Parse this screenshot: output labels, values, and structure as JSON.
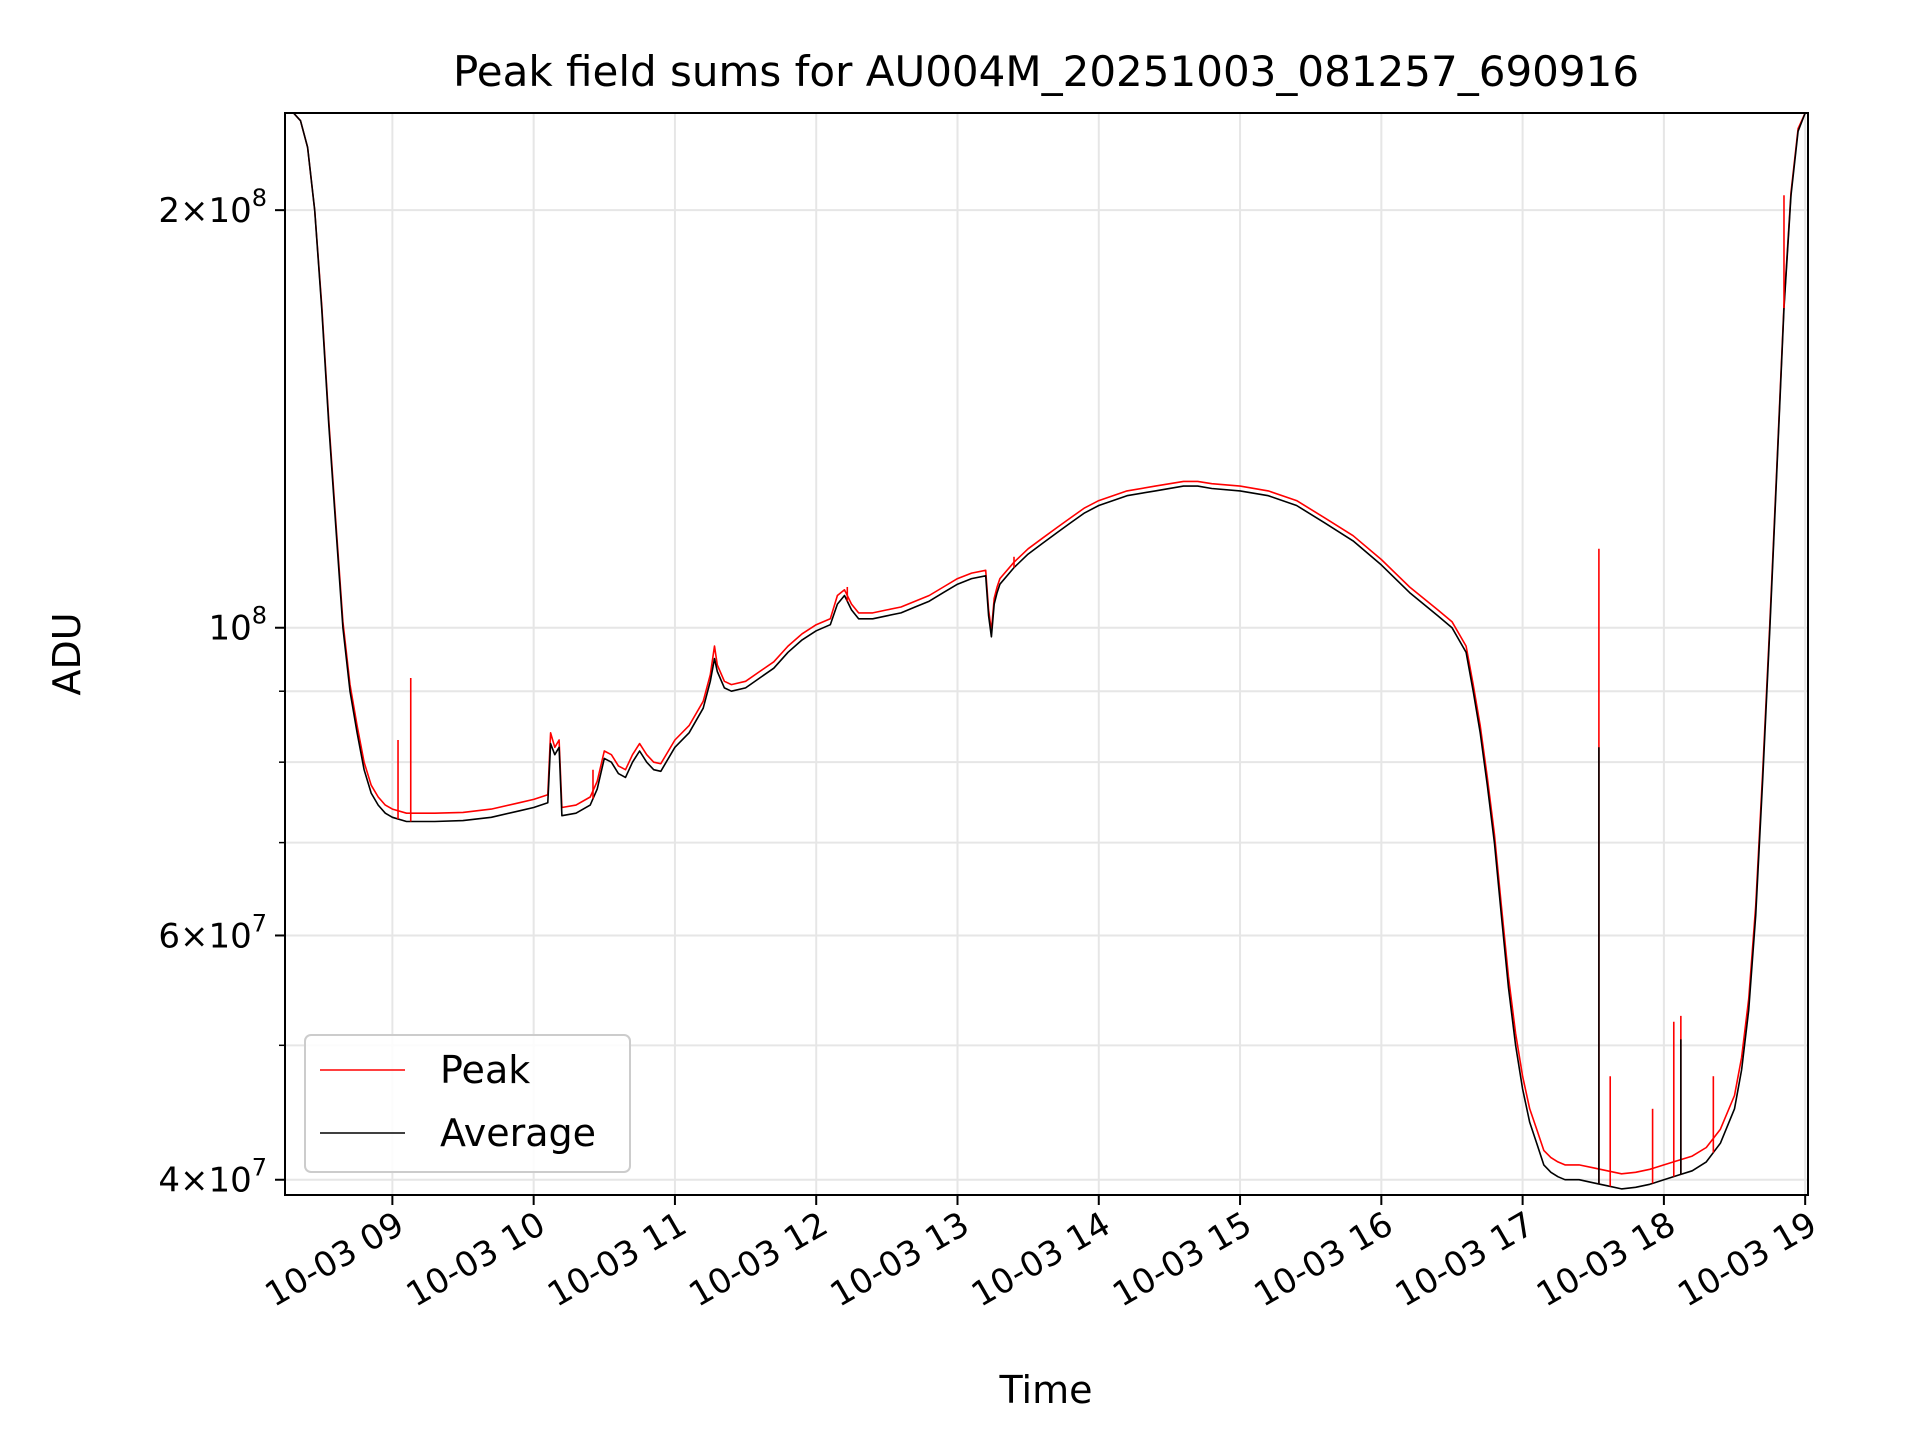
{
  "chart_data": {
    "type": "line",
    "title": "Peak field sums for AU004M_20251003_081257_690916",
    "xlabel": "Time",
    "ylabel": "ADU",
    "yscale": "log",
    "xlim": [
      8.24,
      19.02
    ],
    "ylim": [
      39000000,
      235000000
    ],
    "grid": true,
    "legend_position": "lower-left",
    "colors": {
      "peak": "#ff0000",
      "average": "#000000",
      "grid": "#e6e6e6",
      "legend_border": "#cccccc"
    },
    "x_ticks": [
      {
        "value": 9,
        "label": "10-03 09"
      },
      {
        "value": 10,
        "label": "10-03 10"
      },
      {
        "value": 11,
        "label": "10-03 11"
      },
      {
        "value": 12,
        "label": "10-03 12"
      },
      {
        "value": 13,
        "label": "10-03 13"
      },
      {
        "value": 14,
        "label": "10-03 14"
      },
      {
        "value": 15,
        "label": "10-03 15"
      },
      {
        "value": 16,
        "label": "10-03 16"
      },
      {
        "value": 17,
        "label": "10-03 17"
      },
      {
        "value": 18,
        "label": "10-03 18"
      },
      {
        "value": 19,
        "label": "10-03 19"
      }
    ],
    "y_major_ticks": [
      {
        "value": 40000000,
        "mant": "4",
        "exp": "7"
      },
      {
        "value": 60000000,
        "mant": "6",
        "exp": "7"
      },
      {
        "value": 100000000,
        "mant": "",
        "exp": "8"
      },
      {
        "value": 200000000,
        "mant": "2",
        "exp": "8"
      }
    ],
    "y_minor_ticks": [
      50000000,
      70000000,
      80000000,
      90000000
    ],
    "series": [
      {
        "name": "Average",
        "x": [
          8.24,
          8.3,
          8.35,
          8.4,
          8.45,
          8.5,
          8.55,
          8.6,
          8.65,
          8.7,
          8.75,
          8.8,
          8.85,
          8.9,
          8.95,
          9.0,
          9.1,
          9.2,
          9.3,
          9.5,
          9.7,
          9.9,
          10.0,
          10.1,
          10.12,
          10.15,
          10.18,
          10.2,
          10.3,
          10.4,
          10.45,
          10.5,
          10.55,
          10.6,
          10.65,
          10.7,
          10.75,
          10.8,
          10.85,
          10.9,
          11.0,
          11.1,
          11.2,
          11.25,
          11.28,
          11.3,
          11.35,
          11.4,
          11.5,
          11.6,
          11.7,
          11.8,
          11.9,
          12.0,
          12.1,
          12.15,
          12.2,
          12.25,
          12.3,
          12.4,
          12.5,
          12.6,
          12.7,
          12.8,
          12.9,
          13.0,
          13.1,
          13.2,
          13.22,
          13.24,
          13.26,
          13.28,
          13.3,
          13.4,
          13.5,
          13.6,
          13.7,
          13.8,
          13.9,
          14.0,
          14.2,
          14.4,
          14.6,
          14.7,
          14.8,
          15.0,
          15.2,
          15.4,
          15.6,
          15.8,
          16.0,
          16.2,
          16.4,
          16.5,
          16.6,
          16.65,
          16.7,
          16.75,
          16.8,
          16.85,
          16.9,
          16.95,
          17.0,
          17.05,
          17.1,
          17.15,
          17.2,
          17.25,
          17.3,
          17.4,
          17.5,
          17.6,
          17.7,
          17.8,
          17.9,
          18.0,
          18.1,
          18.2,
          18.3,
          18.4,
          18.5,
          18.55,
          18.6,
          18.65,
          18.7,
          18.75,
          18.8,
          18.85,
          18.9,
          18.95,
          19.0,
          19.02
        ],
        "values": [
          235000000,
          235000000,
          232000000,
          222000000,
          200000000,
          170000000,
          140000000,
          118000000,
          100000000,
          90000000,
          84000000,
          79000000,
          76000000,
          74500000,
          73500000,
          73000000,
          72500000,
          72500000,
          72500000,
          72600000,
          73000000,
          73800000,
          74200000,
          74800000,
          82500000,
          81000000,
          82000000,
          73200000,
          73500000,
          74500000,
          76500000,
          80500000,
          80000000,
          78500000,
          78000000,
          80000000,
          81500000,
          80000000,
          79000000,
          78800000,
          82000000,
          84000000,
          87500000,
          91500000,
          95000000,
          93000000,
          90500000,
          90000000,
          90500000,
          92000000,
          93500000,
          96000000,
          98000000,
          99500000,
          100500000,
          104000000,
          105500000,
          103000000,
          101500000,
          101500000,
          102000000,
          102500000,
          103500000,
          104500000,
          106000000,
          107500000,
          108500000,
          109000000,
          102000000,
          98500000,
          104000000,
          106000000,
          107500000,
          110500000,
          113000000,
          115000000,
          117000000,
          119000000,
          121000000,
          122500000,
          124500000,
          125500000,
          126500000,
          126500000,
          126000000,
          125500000,
          124500000,
          122500000,
          119000000,
          115500000,
          111000000,
          106000000,
          102000000,
          100000000,
          96000000,
          90000000,
          84000000,
          77000000,
          70000000,
          62000000,
          55000000,
          50000000,
          46500000,
          44000000,
          42500000,
          41000000,
          40500000,
          40200000,
          40000000,
          40000000,
          39800000,
          39600000,
          39400000,
          39500000,
          39700000,
          40000000,
          40300000,
          40600000,
          41200000,
          42500000,
          45000000,
          48000000,
          53000000,
          62000000,
          78000000,
          100000000,
          130000000,
          170000000,
          205000000,
          228000000,
          235000000,
          235000000
        ]
      },
      {
        "name": "Peak",
        "x": [
          8.24,
          8.3,
          8.35,
          8.4,
          8.45,
          8.5,
          8.55,
          8.6,
          8.65,
          8.7,
          8.75,
          8.8,
          8.85,
          8.9,
          8.95,
          9.0,
          9.1,
          9.2,
          9.3,
          9.5,
          9.7,
          9.9,
          10.0,
          10.1,
          10.12,
          10.15,
          10.18,
          10.2,
          10.3,
          10.4,
          10.45,
          10.5,
          10.55,
          10.6,
          10.65,
          10.7,
          10.75,
          10.8,
          10.85,
          10.9,
          11.0,
          11.1,
          11.2,
          11.25,
          11.28,
          11.3,
          11.35,
          11.4,
          11.5,
          11.6,
          11.7,
          11.8,
          11.9,
          12.0,
          12.1,
          12.15,
          12.2,
          12.25,
          12.3,
          12.4,
          12.5,
          12.6,
          12.7,
          12.8,
          12.9,
          13.0,
          13.1,
          13.2,
          13.22,
          13.24,
          13.26,
          13.28,
          13.3,
          13.4,
          13.5,
          13.6,
          13.7,
          13.8,
          13.9,
          14.0,
          14.2,
          14.4,
          14.6,
          14.7,
          14.8,
          15.0,
          15.2,
          15.4,
          15.6,
          15.8,
          16.0,
          16.2,
          16.4,
          16.5,
          16.6,
          16.65,
          16.7,
          16.75,
          16.8,
          16.85,
          16.9,
          16.95,
          17.0,
          17.05,
          17.1,
          17.15,
          17.2,
          17.25,
          17.3,
          17.4,
          17.5,
          17.6,
          17.7,
          17.8,
          17.9,
          18.0,
          18.1,
          18.2,
          18.3,
          18.4,
          18.5,
          18.55,
          18.6,
          18.65,
          18.7,
          18.75,
          18.8,
          18.85,
          18.9,
          18.95,
          19.0,
          19.02
        ],
        "values": [
          235000000,
          235000000,
          232000000,
          222000000,
          200000000,
          171000000,
          141000000,
          119000000,
          101000000,
          91000000,
          85000000,
          80000000,
          77000000,
          75500000,
          74500000,
          74000000,
          73500000,
          73500000,
          73500000,
          73600000,
          74000000,
          74800000,
          75200000,
          75800000,
          84000000,
          82000000,
          83000000,
          74200000,
          74500000,
          75500000,
          77500000,
          81500000,
          81000000,
          79500000,
          79000000,
          81000000,
          82500000,
          81000000,
          80000000,
          79800000,
          83000000,
          85000000,
          88500000,
          92500000,
          97000000,
          94000000,
          91500000,
          91000000,
          91500000,
          93000000,
          94500000,
          97000000,
          99000000,
          100500000,
          101500000,
          105500000,
          106500000,
          104000000,
          102500000,
          102500000,
          103000000,
          103500000,
          104500000,
          105500000,
          107000000,
          108500000,
          109500000,
          110000000,
          103000000,
          99500000,
          105000000,
          107000000,
          108500000,
          111500000,
          114000000,
          116000000,
          118000000,
          120000000,
          122000000,
          123500000,
          125500000,
          126500000,
          127500000,
          127500000,
          127000000,
          126500000,
          125500000,
          123500000,
          120000000,
          116500000,
          112000000,
          107000000,
          103000000,
          101000000,
          97000000,
          91000000,
          85000000,
          78000000,
          71000000,
          63000000,
          56000000,
          51000000,
          47500000,
          45000000,
          43500000,
          42000000,
          41500000,
          41200000,
          41000000,
          41000000,
          40800000,
          40600000,
          40400000,
          40500000,
          40700000,
          41000000,
          41300000,
          41600000,
          42200000,
          43500000,
          46000000,
          49000000,
          54000000,
          63000000,
          79000000,
          101000000,
          131000000,
          171000000,
          206000000,
          229000000,
          235000000,
          235000000
        ]
      }
    ],
    "peak_spikes": [
      {
        "x": 9.04,
        "value": 83000000
      },
      {
        "x": 9.13,
        "value": 92000000
      },
      {
        "x": 10.42,
        "value": 79000000
      },
      {
        "x": 12.22,
        "value": 107000000
      },
      {
        "x": 13.4,
        "value": 112500000
      },
      {
        "x": 17.54,
        "value": 114000000
      },
      {
        "x": 17.62,
        "value": 47500000
      },
      {
        "x": 17.92,
        "value": 45000000
      },
      {
        "x": 18.07,
        "value": 52000000
      },
      {
        "x": 18.12,
        "value": 52500000
      },
      {
        "x": 18.35,
        "value": 47500000
      },
      {
        "x": 18.85,
        "value": 205000000
      }
    ],
    "average_spikes": [
      {
        "x": 17.54,
        "value": 82000000
      },
      {
        "x": 18.12,
        "value": 50500000
      }
    ]
  }
}
